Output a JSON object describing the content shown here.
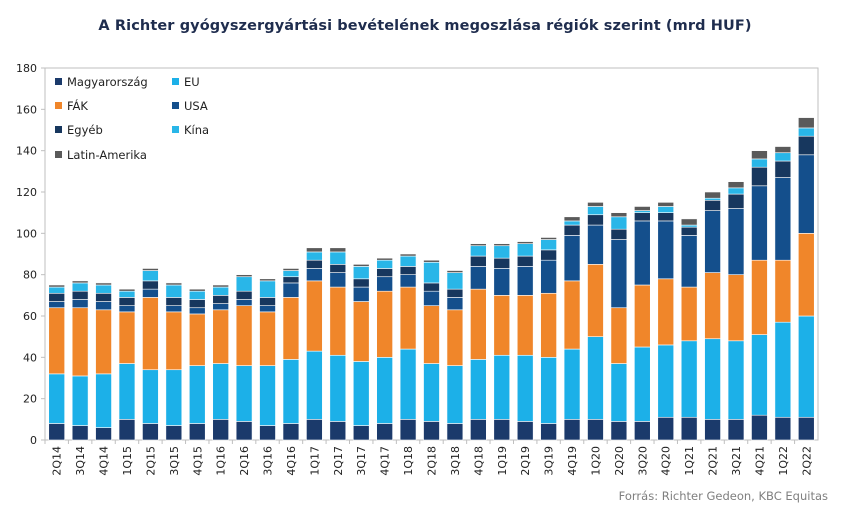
{
  "chart_data": {
    "type": "bar",
    "stacked": true,
    "title": "A Richter gyógyszergyártási bevételének megoszlása régiók szerint (mrd HUF)",
    "source": "Forrás: Richter Gedeon, KBC Equitas",
    "ylim": [
      0,
      180
    ],
    "yticks": [
      0,
      20,
      40,
      60,
      80,
      100,
      120,
      140,
      160,
      180
    ],
    "grid": false,
    "legend_position": "top-left",
    "categories": [
      "2Q14",
      "3Q14",
      "4Q14",
      "1Q15",
      "2Q15",
      "3Q15",
      "4Q15",
      "1Q16",
      "2Q16",
      "3Q16",
      "4Q16",
      "1Q17",
      "2Q17",
      "3Q17",
      "4Q17",
      "1Q18",
      "2Q18",
      "3Q18",
      "4Q18",
      "1Q19",
      "2Q19",
      "3Q19",
      "4Q19",
      "1Q20",
      "2Q20",
      "3Q20",
      "4Q20",
      "1Q21",
      "2Q21",
      "3Q21",
      "4Q21",
      "1Q22",
      "2Q22"
    ],
    "axis_labels": [
      "2Q14",
      "3Q14",
      "4Q14",
      "1Q15",
      "2Q15",
      "3Q15",
      "4Q15",
      "1Q16",
      "2Q16",
      "3Q16",
      "4Q16",
      "1Q17",
      "2Q17",
      "3Q17",
      "4Q17",
      "1Q18",
      "2Q18",
      "3Q18",
      "4Q18",
      "1Q19",
      "2Q19",
      "3Q19",
      "4Q19",
      "1Q20",
      "2Q20",
      "3Q20",
      "4Q20",
      "1Q21",
      "2Q21",
      "3Q21",
      "4Q21",
      "1Q22",
      "2Q22"
    ],
    "series": [
      {
        "name": "Magyarország",
        "color": "#1b3a6b",
        "values": [
          8,
          7,
          6,
          10,
          8,
          7,
          8,
          10,
          9,
          7,
          8,
          10,
          9,
          7,
          8,
          10,
          9,
          8,
          10,
          10,
          9,
          8,
          10,
          10,
          9,
          9,
          11,
          11,
          10,
          10,
          12,
          11,
          11
        ]
      },
      {
        "name": "EU",
        "color": "#1cb0e8",
        "values": [
          24,
          24,
          26,
          27,
          26,
          27,
          28,
          27,
          27,
          29,
          31,
          33,
          32,
          31,
          32,
          34,
          28,
          28,
          29,
          31,
          32,
          32,
          34,
          40,
          28,
          36,
          35,
          37,
          39,
          38,
          39,
          46,
          49
        ]
      },
      {
        "name": "FÁK",
        "color": "#f0862a",
        "values": [
          32,
          33,
          31,
          25,
          35,
          28,
          25,
          26,
          29,
          26,
          30,
          34,
          33,
          29,
          32,
          30,
          28,
          27,
          34,
          29,
          29,
          31,
          33,
          35,
          27,
          30,
          32,
          26,
          32,
          32,
          36,
          30,
          40
        ]
      },
      {
        "name": "USA",
        "color": "#144f8c",
        "values": [
          3,
          4,
          4,
          3,
          4,
          3,
          3,
          3,
          3,
          3,
          7,
          6,
          7,
          7,
          7,
          6,
          7,
          6,
          11,
          13,
          14,
          16,
          22,
          19,
          33,
          31,
          28,
          25,
          30,
          32,
          36,
          40,
          38
        ]
      },
      {
        "name": "Egyéb",
        "color": "#17375e",
        "values": [
          4,
          4,
          4,
          4,
          4,
          4,
          4,
          4,
          4,
          4,
          3,
          4,
          4,
          4,
          4,
          4,
          4,
          4,
          5,
          5,
          5,
          5,
          5,
          5,
          5,
          4,
          4,
          4,
          5,
          7,
          9,
          8,
          9
        ]
      },
      {
        "name": "Kína",
        "color": "#29b6e8",
        "values": [
          3,
          4,
          4,
          3,
          5,
          6,
          4,
          4,
          7,
          8,
          3,
          4,
          6,
          6,
          4,
          5,
          10,
          8,
          5,
          6,
          6,
          5,
          2,
          4,
          6,
          1,
          3,
          1,
          1,
          3,
          4,
          4,
          4
        ]
      },
      {
        "name": "Latin-Amerika",
        "color": "#5a5a5a",
        "values": [
          1,
          1,
          1,
          1,
          1,
          1,
          1,
          1,
          1,
          1,
          1,
          2,
          2,
          1,
          1,
          1,
          1,
          1,
          1,
          1,
          1,
          1,
          2,
          2,
          2,
          2,
          2,
          3,
          3,
          3,
          4,
          3,
          5
        ]
      }
    ]
  }
}
